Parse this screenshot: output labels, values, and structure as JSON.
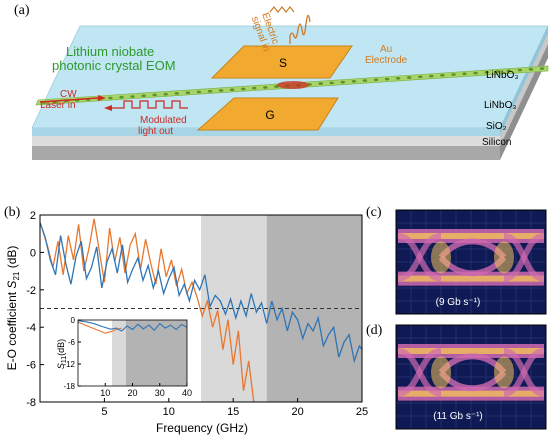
{
  "panels": {
    "a": "(a)",
    "b": "(b)",
    "c": "(c)",
    "d": "(d)"
  },
  "device": {
    "title_line1": "Lithium niobate",
    "title_line2": "photonic crystal EOM",
    "electric_line1": "Electric",
    "electric_line2": "signal in",
    "au_line1": "Au",
    "au_line2": "Electrode",
    "cw_line1": "CW",
    "cw_line2": "Laser in",
    "mod_line1": "Modulated",
    "mod_line2": "light out",
    "electrode_s": "S",
    "electrode_g": "G",
    "layer_linbo3_top": "LiNbO₃",
    "layer_linbo3": "LiNbO₃",
    "layer_sio2": "SiO₂",
    "layer_silicon": "Silicon",
    "colors": {
      "top_face": "#bfe6f2",
      "front_face": "#a9d6e6",
      "sio2": "#d7d7d7",
      "silicon": "#a7a7a7",
      "electrode": "#f2a92f",
      "waveguide": "#a8d46a",
      "green_text": "#2e9a2e",
      "orange_text": "#d27a1e",
      "red": "#cc2a22"
    }
  },
  "chart_data": {
    "type": "line",
    "xlabel": "Frequency (GHz)",
    "ylabel_main": "E-O coefficient ",
    "ylabel_s": "S",
    "ylabel_sub": "21",
    "ylabel_unit": " (dB)",
    "xlim": [
      0,
      25
    ],
    "ylim": [
      -8,
      2
    ],
    "xticks": [
      5,
      10,
      15,
      20,
      25
    ],
    "yticks": [
      2,
      0,
      -2,
      -4,
      -6,
      -8
    ],
    "dashed_line_y": -3,
    "bands": [
      {
        "x0": 12.5,
        "x1": 17.6,
        "color": "#d9d9d9"
      },
      {
        "x0": 17.6,
        "x1": 25,
        "color": "#b3b3b3"
      }
    ],
    "series": [
      {
        "color": "#e8772e",
        "x": [
          0.2,
          0.6,
          1.0,
          1.4,
          1.8,
          2.2,
          2.6,
          3.0,
          3.4,
          3.8,
          4.2,
          4.6,
          5.0,
          5.4,
          5.8,
          6.2,
          6.6,
          7.0,
          7.4,
          7.8,
          8.2,
          8.6,
          9.0,
          9.4,
          9.8,
          10.2,
          10.6,
          11.0,
          11.4,
          11.8,
          12.2,
          12.6,
          13.0,
          13.4,
          13.8,
          14.2,
          14.6,
          15.0,
          15.4,
          15.8,
          16.2,
          16.6
        ],
        "y": [
          1.2,
          0.3,
          -0.8,
          0.6,
          -1.2,
          0.9,
          -0.4,
          1.5,
          -1.0,
          0.2,
          1.8,
          0.1,
          -1.6,
          1.3,
          -0.5,
          0.8,
          -1.1,
          0.4,
          1.0,
          -0.9,
          0.7,
          -0.6,
          -1.7,
          0.2,
          -1.3,
          -0.4,
          -1.8,
          -0.9,
          -2.2,
          -1.6,
          -2.4,
          -3.4,
          -2.6,
          -4.0,
          -3.1,
          -5.2,
          -3.6,
          -6.0,
          -4.2,
          -7.4,
          -5.8,
          -8.0
        ]
      },
      {
        "color": "#2f75b5",
        "x": [
          0.0,
          0.4,
          0.8,
          1.2,
          1.6,
          2.0,
          2.4,
          2.8,
          3.2,
          3.6,
          4.0,
          4.4,
          4.8,
          5.2,
          5.6,
          6.0,
          6.4,
          6.8,
          7.2,
          7.6,
          8.0,
          8.4,
          8.8,
          9.2,
          9.6,
          10.0,
          10.4,
          10.8,
          11.2,
          11.6,
          12.0,
          12.4,
          12.8,
          13.2,
          13.6,
          14.0,
          14.4,
          14.8,
          15.2,
          15.6,
          16.0,
          16.4,
          16.8,
          17.2,
          17.6,
          18.0,
          18.4,
          18.8,
          19.2,
          19.6,
          20.0,
          20.4,
          20.8,
          21.2,
          21.6,
          22.0,
          22.4,
          22.8,
          23.2,
          23.6,
          24.0,
          24.4,
          24.8,
          25.0
        ],
        "y": [
          1.6,
          0.8,
          -0.4,
          -1.2,
          0.9,
          -0.6,
          -1.7,
          -0.2,
          0.6,
          -1.4,
          -0.8,
          0.3,
          -1.9,
          -0.5,
          0.2,
          -1.1,
          0.4,
          -1.6,
          -0.9,
          -0.3,
          -1.5,
          -0.7,
          -1.9,
          -1.0,
          -2.2,
          -1.4,
          -0.8,
          -2.3,
          -1.7,
          -2.6,
          -1.5,
          -2.0,
          -1.2,
          -2.9,
          -2.3,
          -2.6,
          -3.3,
          -2.5,
          -3.5,
          -2.6,
          -3.4,
          -2.2,
          -3.2,
          -2.7,
          -3.8,
          -2.6,
          -3.6,
          -3.0,
          -4.2,
          -3.2,
          -3.6,
          -4.6,
          -3.8,
          -4.2,
          -3.5,
          -5.0,
          -4.4,
          -4.0,
          -5.6,
          -4.8,
          -4.4,
          -5.8,
          -5.0,
          -5.2
        ]
      }
    ],
    "inset": {
      "type": "line",
      "ylabel_s": "S",
      "ylabel_sub": "11",
      "ylabel_unit": "(dB)",
      "xlim": [
        0,
        40
      ],
      "ylim": [
        -18,
        0
      ],
      "xticks": [
        10,
        20,
        30,
        40
      ],
      "yticks": [
        0,
        -6,
        -12,
        -18
      ],
      "bands": [
        {
          "x0": 12.5,
          "x1": 17.6,
          "color": "#d9d9d9"
        },
        {
          "x0": 17.6,
          "x1": 40,
          "color": "#b3b3b3"
        }
      ],
      "series": [
        {
          "color": "#e8772e",
          "x": [
            0,
            2,
            4,
            6,
            8,
            10,
            12,
            14,
            16
          ],
          "y": [
            -0.6,
            -1.2,
            -1.8,
            -2.4,
            -3.0,
            -3.6,
            -3.2,
            -2.6,
            -2.2
          ]
        },
        {
          "color": "#2f75b5",
          "x": [
            0,
            3,
            6,
            9,
            12,
            14,
            16,
            18,
            20,
            22,
            24,
            26,
            28,
            30,
            32,
            34,
            36,
            38,
            40
          ],
          "y": [
            -0.2,
            -0.5,
            -1.0,
            -1.8,
            -2.5,
            -2.2,
            -3.0,
            -1.6,
            -2.6,
            -1.2,
            -2.4,
            -1.4,
            -2.8,
            -1.0,
            -2.2,
            -1.4,
            -2.6,
            -1.2,
            -2.0
          ]
        }
      ]
    }
  },
  "eyes": [
    {
      "label": "(9 Gb s⁻¹)"
    },
    {
      "label": "(11 Gb s⁻¹)"
    }
  ]
}
